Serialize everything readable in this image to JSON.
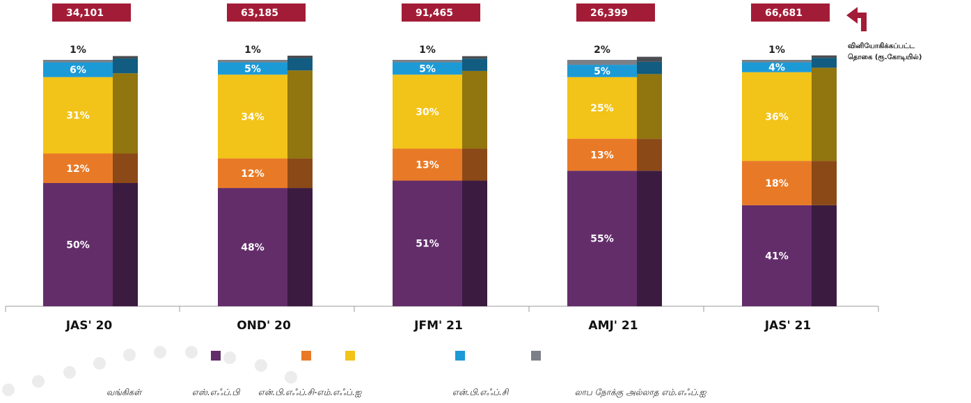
{
  "chart_data": {
    "type": "stacked_bar",
    "categories": [
      "JAS' 20",
      "OND' 20",
      "JFM' 21",
      "AMJ' 21",
      "JAS' 21"
    ],
    "ylim": [
      0,
      100
    ],
    "series": [
      {
        "name": "வங்கிகள்",
        "color": "#632d6a",
        "values": [
          50,
          48,
          51,
          55,
          41
        ],
        "value_labels": [
          "50%",
          "48%",
          "51%",
          "55%",
          "41%"
        ]
      },
      {
        "name": "எஸ்.எஃப்.பி",
        "color": "#e87a27",
        "values": [
          12,
          12,
          13,
          13,
          18
        ],
        "value_labels": [
          "12%",
          "12%",
          "13%",
          "13%",
          "18%"
        ]
      },
      {
        "name": "என்.பி.எஃப்.சி-எம்.எஃப்.ஐ",
        "color": "#f2c318",
        "values": [
          31,
          34,
          30,
          25,
          36
        ],
        "value_labels": [
          "31%",
          "34%",
          "30%",
          "25%",
          "36%"
        ]
      },
      {
        "name": "என்.பி.எஃப்.சி",
        "color": "#1c9ad6",
        "values": [
          6,
          5,
          5,
          5,
          4
        ],
        "value_labels": [
          "6%",
          "5%",
          "5%",
          "5%",
          "4%"
        ]
      },
      {
        "name": "லாப நோக்கு அல்லாத எம்.எஃப்.ஐ",
        "color": "#7b8088",
        "values": [
          1,
          1,
          1,
          2,
          1
        ],
        "value_labels": [
          "1%",
          "1%",
          "1%",
          "2%",
          "1%"
        ]
      }
    ],
    "totals": {
      "color": "#a31c37",
      "values": [
        34101,
        63185,
        91465,
        26399,
        66681
      ],
      "value_labels": [
        "34,101",
        "63,185",
        "91,465",
        "26,399",
        "66,681"
      ]
    },
    "annotation": [
      "வினியோகிக்கப்பட்ட",
      "தொகை (ரூ.கோடியில்)"
    ]
  }
}
